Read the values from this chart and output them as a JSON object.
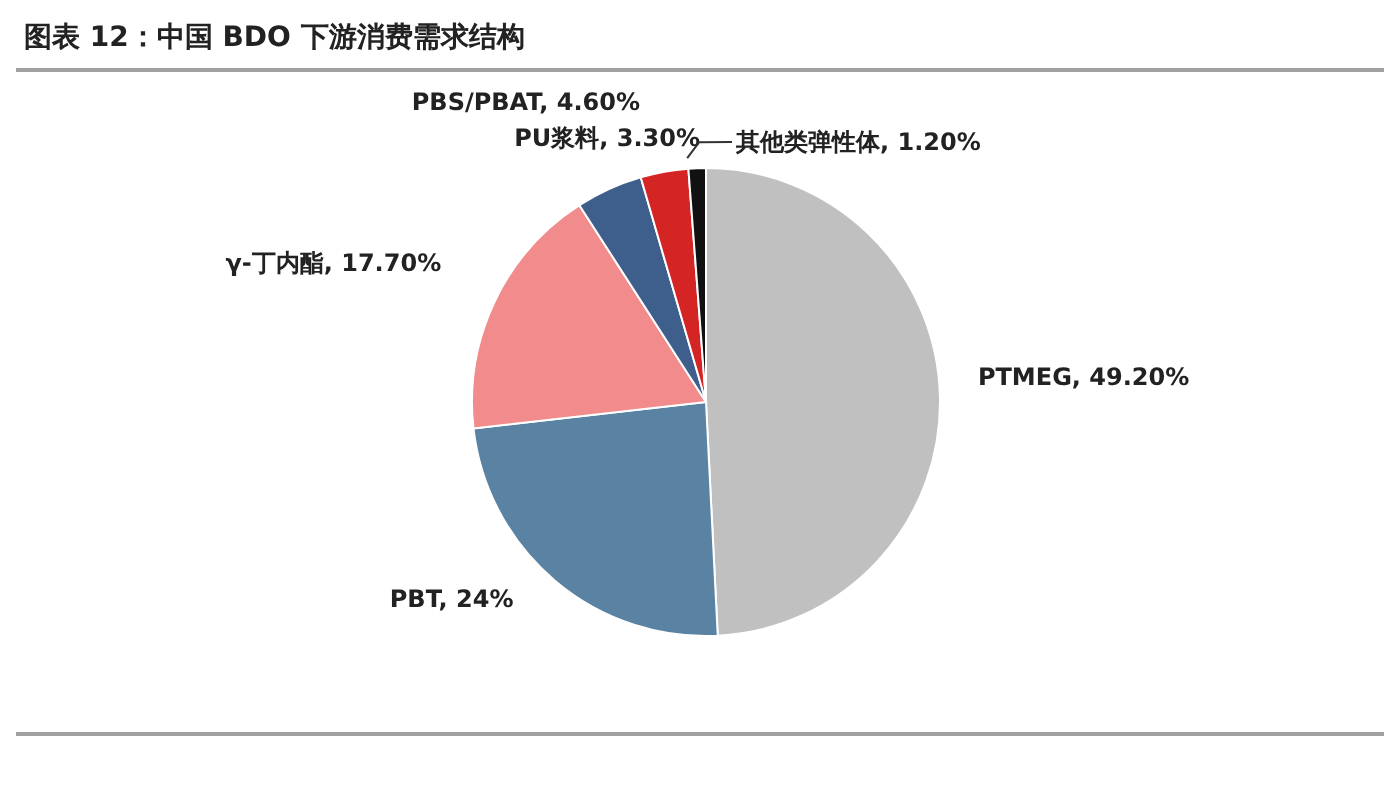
{
  "chart_data": {
    "type": "pie",
    "title": "图表 12：中国 BDO 下游消费需求结构",
    "categories": [
      "PTMEG",
      "PBT",
      "γ-丁内酯",
      "PBS/PBAT",
      "PU浆料",
      "其他类弹性体"
    ],
    "values": [
      49.2,
      24,
      17.7,
      4.6,
      3.3,
      1.2
    ],
    "value_labels": [
      "49.20%",
      "24%",
      "17.70%",
      "4.60%",
      "3.30%",
      "1.20%"
    ],
    "colors": [
      "#c0c0c0",
      "#5a82a3",
      "#f28b8b",
      "#3e5f8c",
      "#d42424",
      "#111111"
    ]
  }
}
